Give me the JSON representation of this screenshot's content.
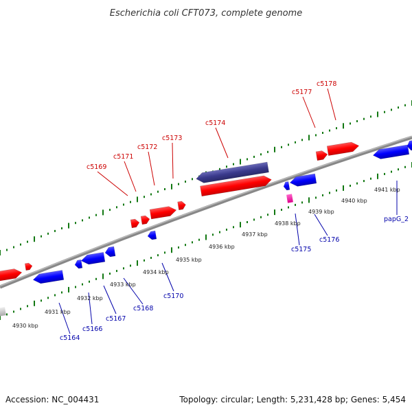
{
  "title": "Escherichia coli CFT073, complete genome",
  "footer": {
    "accession": "Accession: NC_004431",
    "summary": "Topology: circular; Length: 5,231,428 bp; Genes: 5,454"
  },
  "colors": {
    "plus_strand": "#ff0000",
    "minus_strand": "#0000ff",
    "highlight": "#3a3a8c",
    "rna": "#ff22aa",
    "backbone": "#888888",
    "ticks": "#117711",
    "plus_label": "#cc0000",
    "minus_label": "#0000aa"
  },
  "ticks": [
    "4930 kbp",
    "4931 kbp",
    "4932 kbp",
    "4933 kbp",
    "4934 kbp",
    "4935 kbp",
    "4936 kbp",
    "4937 kbp",
    "4938 kbp",
    "4939 kbp",
    "4940 kbp",
    "4941 kbp"
  ],
  "plus_labels": [
    "c5169",
    "c5171",
    "c5172",
    "c5173",
    "c5174",
    "c5177",
    "c5178"
  ],
  "minus_labels": [
    "c5164",
    "c5166",
    "c5167",
    "c5168",
    "c5170",
    "c5175",
    "c5176",
    "papG_2"
  ]
}
